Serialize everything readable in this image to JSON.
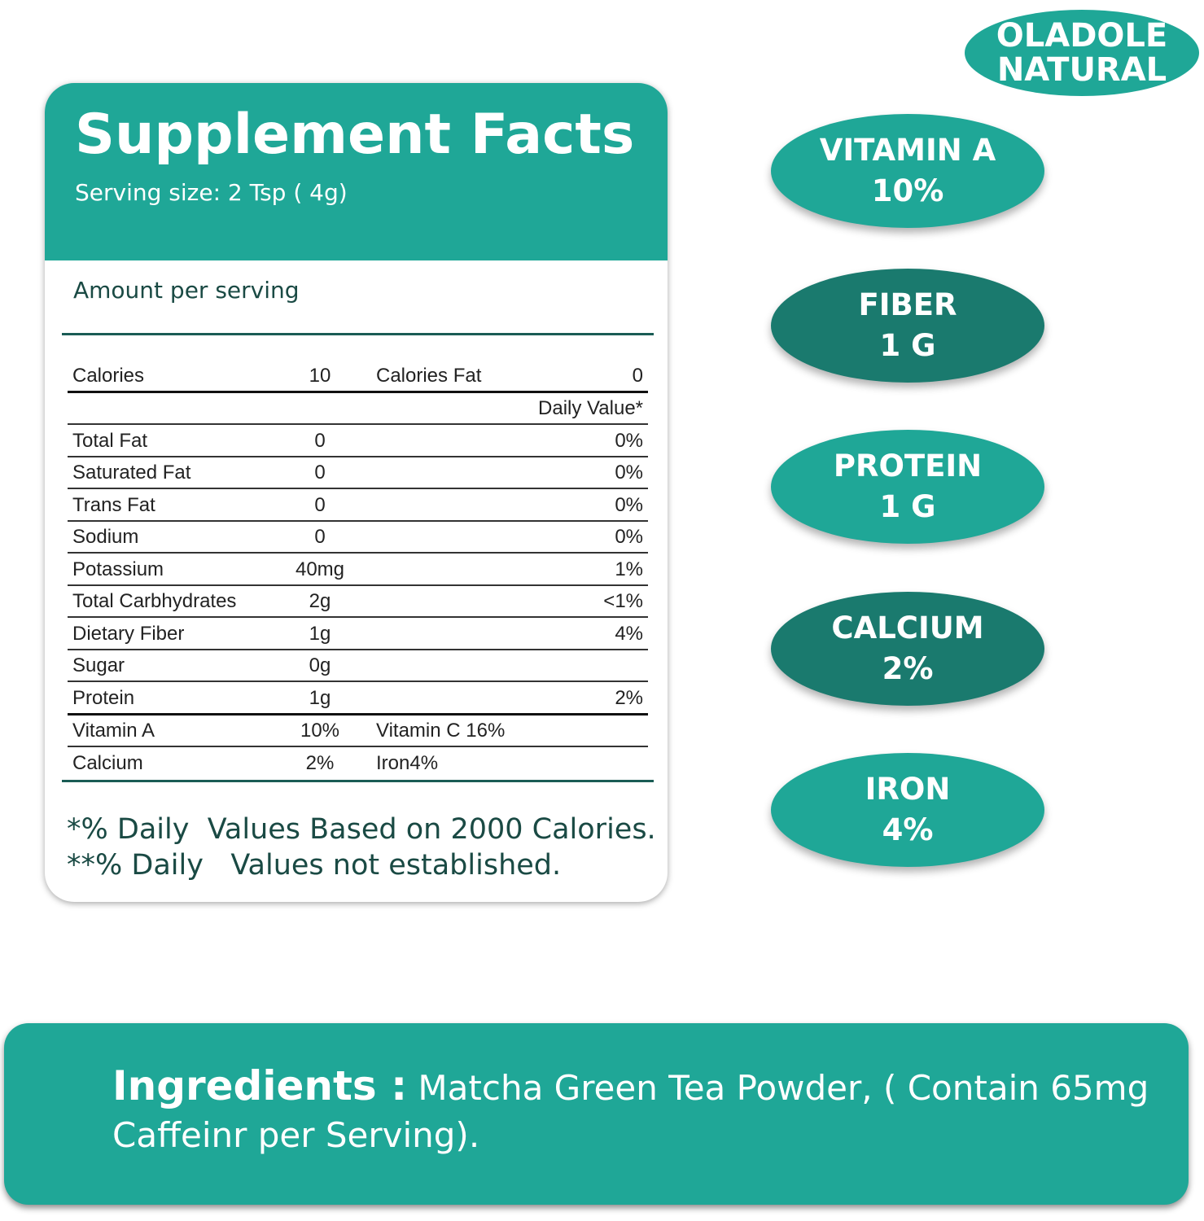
{
  "brand": {
    "line1": "OLADOLE",
    "line2": "NATURAL"
  },
  "colors": {
    "teal": "#1fa797",
    "dark_teal": "#1a7a6e"
  },
  "facts": {
    "title": "Supplement Facts",
    "serving_size": "Serving size: 2 Tsp ( 4g)",
    "amount_per_serving": "Amount per serving",
    "rows": [
      {
        "c1": "Calories",
        "c2": "10",
        "c3": "Calories Fat",
        "c4": "0"
      },
      {
        "c1": "",
        "c2": "",
        "c3": "",
        "c4": "Daily Value*"
      },
      {
        "c1": "Total Fat",
        "c2": "0",
        "c3": "",
        "c4": "0%"
      },
      {
        "c1": "Saturated Fat",
        "c2": "0",
        "c3": "",
        "c4": "0%"
      },
      {
        "c1": "Trans Fat",
        "c2": "0",
        "c3": "",
        "c4": "0%"
      },
      {
        "c1": "Sodium",
        "c2": "0",
        "c3": "",
        "c4": "0%"
      },
      {
        "c1": "Potassium",
        "c2": "40mg",
        "c3": "",
        "c4": "1%"
      },
      {
        "c1": "Total Carbhydrates",
        "c2": "2g",
        "c3": "",
        "c4": "<1%"
      },
      {
        "c1": "Dietary Fiber",
        "c2": "1g",
        "c3": "",
        "c4": "4%"
      },
      {
        "c1": "Sugar",
        "c2": "0g",
        "c3": "",
        "c4": ""
      },
      {
        "c1": "Protein",
        "c2": "1g",
        "c3": "",
        "c4": "2%"
      },
      {
        "c1": "Vitamin A",
        "c2": "10%",
        "c3": "Vitamin C 16%",
        "c4": ""
      },
      {
        "c1": "Calcium",
        "c2": "2%",
        "c3": "Iron4%",
        "c4": ""
      }
    ],
    "footnote1": "*% Daily  Values Based on 2000 Calories.",
    "footnote2": "**% Daily   Values not established."
  },
  "highlights": [
    {
      "label": "VITAMIN A",
      "value": "10%",
      "color": "#1fa797"
    },
    {
      "label": "FIBER",
      "value": "1 G",
      "color": "#1a7a6e"
    },
    {
      "label": "PROTEIN",
      "value": "1 G",
      "color": "#1fa797"
    },
    {
      "label": "CALCIUM",
      "value": "2%",
      "color": "#1a7a6e"
    },
    {
      "label": "IRON",
      "value": "4%",
      "color": "#1fa797"
    }
  ],
  "ingredients": {
    "label": "Ingredients :",
    "text": " Matcha Green Tea Powder, ( Contain 65mg Caffeinr per Serving)."
  }
}
